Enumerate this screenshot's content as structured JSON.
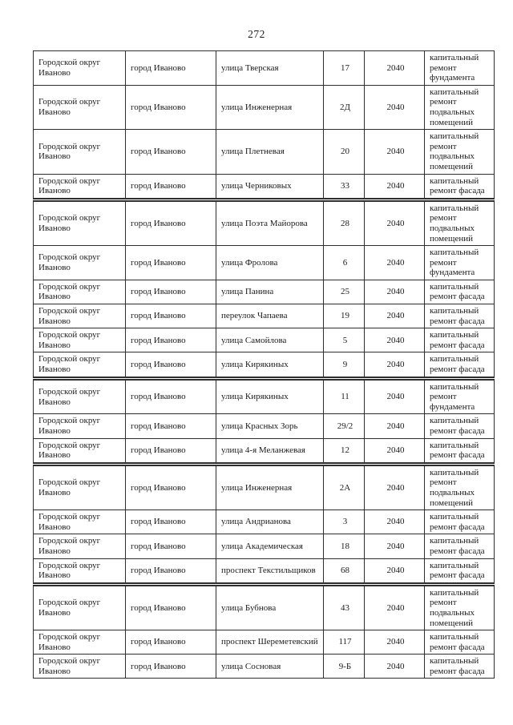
{
  "page": {
    "number": "272"
  },
  "colors": {
    "background": "#ffffff",
    "border": "#2e2e2e",
    "text": "#1c1c1c"
  },
  "table": {
    "rows": [
      {
        "district": "Городской округ Иваново",
        "city": "город Иваново",
        "street": "улица Тверская",
        "house": "17",
        "year": "2040",
        "work": "капитальный ремонт фундамента",
        "thick_top": false
      },
      {
        "district": "Городской округ Иваново",
        "city": "город Иваново",
        "street": "улица Инженерная",
        "house": "2Д",
        "year": "2040",
        "work": "капитальный ремонт подвальных помещений",
        "thick_top": false
      },
      {
        "district": "Городской округ Иваново",
        "city": "город Иваново",
        "street": "улица Плетневая",
        "house": "20",
        "year": "2040",
        "work": "капитальный ремонт подвальных помещений",
        "thick_top": false
      },
      {
        "district": "Городской округ Иваново",
        "city": "город Иваново",
        "street": "улица Черниковых",
        "house": "33",
        "year": "2040",
        "work": "капитальный ремонт фасада",
        "thick_top": false
      },
      {
        "district": "Городской округ Иваново",
        "city": "город Иваново",
        "street": "улица Поэта Майорова",
        "house": "28",
        "year": "2040",
        "work": "капитальный ремонт подвальных помещений",
        "thick_top": true
      },
      {
        "district": "Городской округ Иваново",
        "city": "город Иваново",
        "street": "улица Фролова",
        "house": "6",
        "year": "2040",
        "work": "капитальный ремонт фундамента",
        "thick_top": false
      },
      {
        "district": "Городской округ Иваново",
        "city": "город Иваново",
        "street": "улица Панина",
        "house": "25",
        "year": "2040",
        "work": "капитальный ремонт фасада",
        "thick_top": false
      },
      {
        "district": "Городской округ Иваново",
        "city": "город Иваново",
        "street": "переулок Чапаева",
        "house": "19",
        "year": "2040",
        "work": "капитальный ремонт фасада",
        "thick_top": false
      },
      {
        "district": "Городской округ Иваново",
        "city": "город Иваново",
        "street": "улица Самойлова",
        "house": "5",
        "year": "2040",
        "work": "капитальный ремонт фасада",
        "thick_top": false
      },
      {
        "district": "Городской округ Иваново",
        "city": "город Иваново",
        "street": "улица Кирякиных",
        "house": "9",
        "year": "2040",
        "work": "капитальный ремонт фасада",
        "thick_top": false
      },
      {
        "district": "Городской округ Иваново",
        "city": "город Иваново",
        "street": "улица Кирякиных",
        "house": "11",
        "year": "2040",
        "work": "капитальный ремонт фундамента",
        "thick_top": true
      },
      {
        "district": "Городской округ Иваново",
        "city": "город Иваново",
        "street": "улица Красных Зорь",
        "house": "29/2",
        "year": "2040",
        "work": "капитальный ремонт фасада",
        "thick_top": false
      },
      {
        "district": "Городской округ Иваново",
        "city": "город Иваново",
        "street": "улица 4-я Меланжевая",
        "house": "12",
        "year": "2040",
        "work": "капитальный ремонт фасада",
        "thick_top": false
      },
      {
        "district": "Городской округ Иваново",
        "city": "город Иваново",
        "street": "улица Инженерная",
        "house": "2А",
        "year": "2040",
        "work": "капитальный ремонт подвальных помещений",
        "thick_top": true
      },
      {
        "district": "Городской округ Иваново",
        "city": "город Иваново",
        "street": "улица Андрианова",
        "house": "3",
        "year": "2040",
        "work": "капитальный ремонт фасада",
        "thick_top": false
      },
      {
        "district": "Городской округ Иваново",
        "city": "город Иваново",
        "street": "улица Академическая",
        "house": "18",
        "year": "2040",
        "work": "капитальный ремонт фасада",
        "thick_top": false
      },
      {
        "district": "Городской округ Иваново",
        "city": "город Иваново",
        "street": "проспект Текстильщиков",
        "house": "68",
        "year": "2040",
        "work": "капитальный ремонт фасада",
        "thick_top": false
      },
      {
        "district": "Городской округ Иваново",
        "city": "город Иваново",
        "street": "улица Бубнова",
        "house": "43",
        "year": "2040",
        "work": "капитальный ремонт подвальных помещений",
        "thick_top": true
      },
      {
        "district": "Городской округ Иваново",
        "city": "город Иваново",
        "street": "проспект Шереметевский",
        "house": "117",
        "year": "2040",
        "work": "капитальный ремонт фасада",
        "thick_top": false
      },
      {
        "district": "Городской округ Иваново",
        "city": "город Иваново",
        "street": "улица Сосновая",
        "house": "9-Б",
        "year": "2040",
        "work": "капитальный ремонт фасада",
        "thick_top": false
      }
    ]
  }
}
